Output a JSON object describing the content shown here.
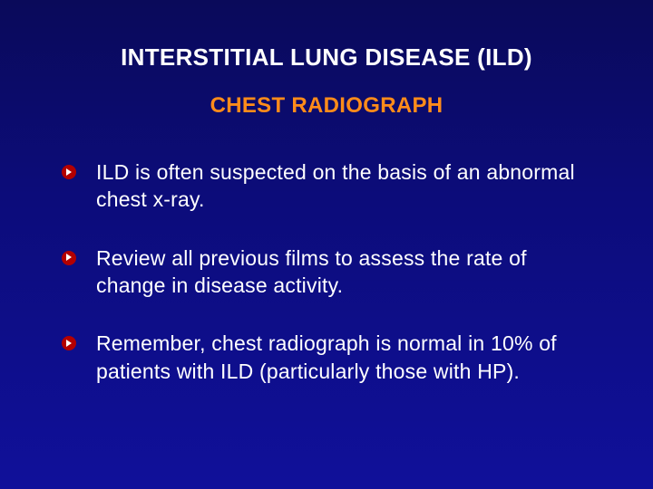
{
  "slide": {
    "background_gradient": [
      "#0a0a5a",
      "#0c0c7a",
      "#10109a"
    ],
    "title": "INTERSTITIAL LUNG DISEASE (ILD)",
    "title_color": "#ffffff",
    "title_fontsize": 26,
    "subtitle": "CHEST RADIOGRAPH",
    "subtitle_color": "#ff8c1a",
    "subtitle_fontsize": 24,
    "bullet_marker_color": "#b30000",
    "bullet_arrow_color": "#ffffff",
    "body_text_color": "#ffffff",
    "body_fontsize": 23,
    "bullets": [
      {
        "text": " ILD is often suspected on the basis of an abnormal chest x-ray."
      },
      {
        "text": "Review all previous films to assess the rate of change in disease activity."
      },
      {
        "text": "Remember, chest radiograph is normal in 10% of patients with ILD (particularly those with HP)."
      }
    ]
  }
}
